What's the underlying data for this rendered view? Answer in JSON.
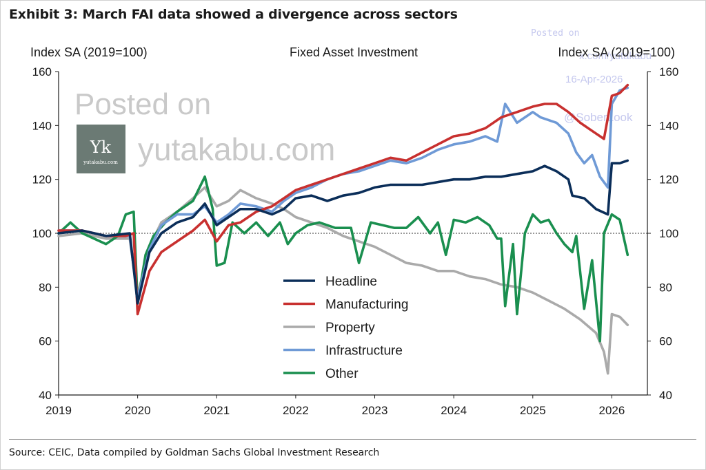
{
  "exhibit_title": "Exhibit 3: March FAI data showed a divergence across sectors",
  "source": "Source: CEIC, Data compiled by Goldman Sachs Global Investment Research",
  "watermark": {
    "line1": "Posted on",
    "line2": "yutakabu.com",
    "logo_mark": "Yk",
    "logo_text": "yutakabu.com",
    "small_posted": "Posted on",
    "small_site": "x.com/yutakabu",
    "small_date": "16-Apr-2026",
    "small_handle": "@SoberLook"
  },
  "chart_data": {
    "type": "line",
    "title": "Fixed Asset Investment",
    "ylabel_left": "Index SA (2019=100)",
    "ylabel_right": "Index SA (2019=100)",
    "xlim": [
      2019.0,
      2026.45
    ],
    "ylim": [
      40,
      160
    ],
    "y_ticks": [
      40,
      60,
      80,
      100,
      120,
      140,
      160
    ],
    "x_ticks": [
      2019,
      2020,
      2021,
      2022,
      2023,
      2024,
      2025,
      2026
    ],
    "reference_line": 100,
    "legend_position": "center",
    "series": [
      {
        "name": "Headline",
        "color": "#0b2e59",
        "points": [
          [
            2019.0,
            100
          ],
          [
            2019.3,
            101
          ],
          [
            2019.6,
            99
          ],
          [
            2019.9,
            100
          ],
          [
            2020.0,
            74
          ],
          [
            2020.15,
            93
          ],
          [
            2020.3,
            100
          ],
          [
            2020.5,
            104
          ],
          [
            2020.7,
            106
          ],
          [
            2020.85,
            111
          ],
          [
            2021.0,
            103
          ],
          [
            2021.15,
            106
          ],
          [
            2021.3,
            109
          ],
          [
            2021.5,
            109
          ],
          [
            2021.7,
            107
          ],
          [
            2021.85,
            109
          ],
          [
            2022.0,
            113
          ],
          [
            2022.2,
            114
          ],
          [
            2022.4,
            112
          ],
          [
            2022.6,
            114
          ],
          [
            2022.8,
            115
          ],
          [
            2023.0,
            117
          ],
          [
            2023.2,
            118
          ],
          [
            2023.4,
            118
          ],
          [
            2023.6,
            118
          ],
          [
            2023.8,
            119
          ],
          [
            2024.0,
            120
          ],
          [
            2024.2,
            120
          ],
          [
            2024.4,
            121
          ],
          [
            2024.6,
            121
          ],
          [
            2024.8,
            122
          ],
          [
            2025.0,
            123
          ],
          [
            2025.15,
            125
          ],
          [
            2025.3,
            123
          ],
          [
            2025.45,
            120
          ],
          [
            2025.5,
            114
          ],
          [
            2025.65,
            113
          ],
          [
            2025.8,
            109
          ],
          [
            2025.95,
            107
          ],
          [
            2026.0,
            126
          ],
          [
            2026.1,
            126
          ],
          [
            2026.2,
            127
          ]
        ]
      },
      {
        "name": "Manufacturing",
        "color": "#c8302f",
        "points": [
          [
            2019.0,
            101
          ],
          [
            2019.3,
            101
          ],
          [
            2019.6,
            99
          ],
          [
            2019.85,
            99
          ],
          [
            2019.95,
            100
          ],
          [
            2020.0,
            70
          ],
          [
            2020.15,
            86
          ],
          [
            2020.3,
            93
          ],
          [
            2020.5,
            97
          ],
          [
            2020.7,
            101
          ],
          [
            2020.85,
            105
          ],
          [
            2021.0,
            97
          ],
          [
            2021.15,
            103
          ],
          [
            2021.3,
            104
          ],
          [
            2021.5,
            108
          ],
          [
            2021.7,
            110
          ],
          [
            2021.85,
            113
          ],
          [
            2022.0,
            116
          ],
          [
            2022.2,
            118
          ],
          [
            2022.4,
            120
          ],
          [
            2022.6,
            122
          ],
          [
            2022.8,
            124
          ],
          [
            2023.0,
            126
          ],
          [
            2023.2,
            128
          ],
          [
            2023.4,
            127
          ],
          [
            2023.6,
            130
          ],
          [
            2023.8,
            133
          ],
          [
            2024.0,
            136
          ],
          [
            2024.2,
            137
          ],
          [
            2024.4,
            139
          ],
          [
            2024.6,
            143
          ],
          [
            2024.8,
            145
          ],
          [
            2025.0,
            147
          ],
          [
            2025.15,
            148
          ],
          [
            2025.3,
            148
          ],
          [
            2025.45,
            145
          ],
          [
            2025.6,
            141
          ],
          [
            2025.75,
            138
          ],
          [
            2025.9,
            135
          ],
          [
            2026.0,
            151
          ],
          [
            2026.1,
            152
          ],
          [
            2026.2,
            155
          ]
        ]
      },
      {
        "name": "Property",
        "color": "#aaaaaa",
        "points": [
          [
            2019.0,
            99
          ],
          [
            2019.3,
            100
          ],
          [
            2019.6,
            98
          ],
          [
            2019.9,
            98
          ],
          [
            2020.0,
            77
          ],
          [
            2020.15,
            95
          ],
          [
            2020.3,
            104
          ],
          [
            2020.5,
            108
          ],
          [
            2020.7,
            113
          ],
          [
            2020.85,
            117
          ],
          [
            2021.0,
            110
          ],
          [
            2021.15,
            112
          ],
          [
            2021.3,
            116
          ],
          [
            2021.5,
            113
          ],
          [
            2021.7,
            111
          ],
          [
            2021.85,
            109
          ],
          [
            2022.0,
            106
          ],
          [
            2022.2,
            104
          ],
          [
            2022.4,
            102
          ],
          [
            2022.6,
            99
          ],
          [
            2022.8,
            97
          ],
          [
            2023.0,
            95
          ],
          [
            2023.2,
            92
          ],
          [
            2023.4,
            89
          ],
          [
            2023.6,
            88
          ],
          [
            2023.8,
            86
          ],
          [
            2024.0,
            86
          ],
          [
            2024.2,
            84
          ],
          [
            2024.4,
            83
          ],
          [
            2024.6,
            81
          ],
          [
            2024.8,
            80
          ],
          [
            2025.0,
            78
          ],
          [
            2025.2,
            75
          ],
          [
            2025.4,
            72
          ],
          [
            2025.6,
            68
          ],
          [
            2025.8,
            63
          ],
          [
            2025.9,
            56
          ],
          [
            2025.95,
            48
          ],
          [
            2026.0,
            70
          ],
          [
            2026.1,
            69
          ],
          [
            2026.2,
            66
          ]
        ]
      },
      {
        "name": "Infrastructure",
        "color": "#6f9ad6",
        "points": [
          [
            2019.0,
            101
          ],
          [
            2019.3,
            101
          ],
          [
            2019.6,
            99
          ],
          [
            2019.9,
            99
          ],
          [
            2020.0,
            76
          ],
          [
            2020.15,
            94
          ],
          [
            2020.3,
            103
          ],
          [
            2020.5,
            107
          ],
          [
            2020.7,
            107
          ],
          [
            2020.85,
            110
          ],
          [
            2021.0,
            104
          ],
          [
            2021.15,
            107
          ],
          [
            2021.3,
            111
          ],
          [
            2021.5,
            110
          ],
          [
            2021.7,
            108
          ],
          [
            2021.85,
            112
          ],
          [
            2022.0,
            115
          ],
          [
            2022.2,
            117
          ],
          [
            2022.4,
            120
          ],
          [
            2022.6,
            122
          ],
          [
            2022.8,
            123
          ],
          [
            2023.0,
            125
          ],
          [
            2023.2,
            127
          ],
          [
            2023.4,
            126
          ],
          [
            2023.6,
            128
          ],
          [
            2023.8,
            131
          ],
          [
            2024.0,
            133
          ],
          [
            2024.2,
            134
          ],
          [
            2024.4,
            136
          ],
          [
            2024.55,
            134
          ],
          [
            2024.65,
            148
          ],
          [
            2024.8,
            141
          ],
          [
            2025.0,
            145
          ],
          [
            2025.1,
            143
          ],
          [
            2025.3,
            141
          ],
          [
            2025.45,
            137
          ],
          [
            2025.55,
            130
          ],
          [
            2025.65,
            126
          ],
          [
            2025.75,
            129
          ],
          [
            2025.85,
            121
          ],
          [
            2025.95,
            117
          ],
          [
            2026.0,
            148
          ],
          [
            2026.1,
            153
          ],
          [
            2026.2,
            154
          ]
        ]
      },
      {
        "name": "Other",
        "color": "#1a8f4f",
        "points": [
          [
            2019.0,
            100
          ],
          [
            2019.15,
            104
          ],
          [
            2019.3,
            100
          ],
          [
            2019.45,
            98
          ],
          [
            2019.6,
            96
          ],
          [
            2019.75,
            99
          ],
          [
            2019.85,
            107
          ],
          [
            2019.95,
            108
          ],
          [
            2020.0,
            74
          ],
          [
            2020.1,
            92
          ],
          [
            2020.2,
            99
          ],
          [
            2020.35,
            104
          ],
          [
            2020.5,
            108
          ],
          [
            2020.7,
            112
          ],
          [
            2020.85,
            121
          ],
          [
            2020.95,
            109
          ],
          [
            2021.0,
            88
          ],
          [
            2021.1,
            89
          ],
          [
            2021.2,
            104
          ],
          [
            2021.35,
            100
          ],
          [
            2021.5,
            104
          ],
          [
            2021.65,
            99
          ],
          [
            2021.8,
            104
          ],
          [
            2021.9,
            96
          ],
          [
            2022.0,
            100
          ],
          [
            2022.15,
            103
          ],
          [
            2022.3,
            104
          ],
          [
            2022.5,
            102
          ],
          [
            2022.7,
            102
          ],
          [
            2022.8,
            89
          ],
          [
            2022.95,
            104
          ],
          [
            2023.1,
            103
          ],
          [
            2023.25,
            102
          ],
          [
            2023.4,
            102
          ],
          [
            2023.55,
            106
          ],
          [
            2023.7,
            100
          ],
          [
            2023.8,
            104
          ],
          [
            2023.9,
            92
          ],
          [
            2024.0,
            105
          ],
          [
            2024.15,
            104
          ],
          [
            2024.3,
            106
          ],
          [
            2024.45,
            103
          ],
          [
            2024.55,
            98
          ],
          [
            2024.6,
            98
          ],
          [
            2024.65,
            73
          ],
          [
            2024.75,
            96
          ],
          [
            2024.8,
            70
          ],
          [
            2024.9,
            100
          ],
          [
            2025.0,
            107
          ],
          [
            2025.1,
            104
          ],
          [
            2025.2,
            105
          ],
          [
            2025.3,
            100
          ],
          [
            2025.4,
            96
          ],
          [
            2025.5,
            93
          ],
          [
            2025.55,
            99
          ],
          [
            2025.65,
            72
          ],
          [
            2025.75,
            90
          ],
          [
            2025.85,
            60
          ],
          [
            2025.9,
            100
          ],
          [
            2026.0,
            107
          ],
          [
            2026.1,
            105
          ],
          [
            2026.2,
            92
          ]
        ]
      }
    ]
  }
}
